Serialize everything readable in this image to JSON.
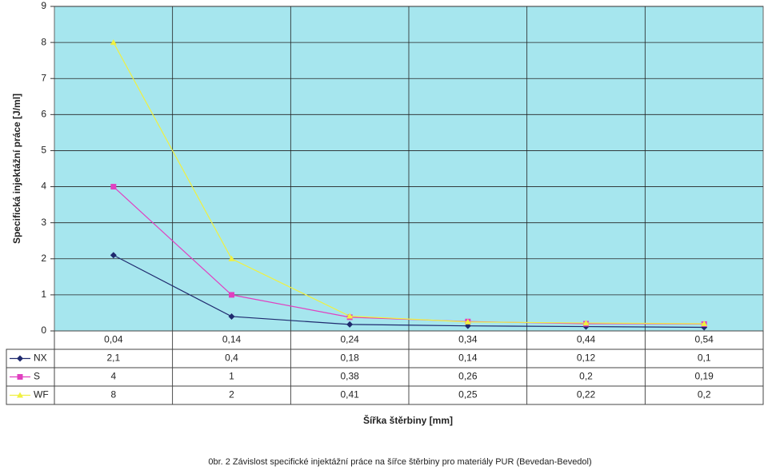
{
  "chart_data": {
    "type": "line",
    "y_label": "Specifická injektážní práce [J/ml]",
    "x_label": "Šířka štěrbiny [mm]",
    "caption": "0br. 2   Závislost specifické injektážní práce na šířce štěrbiny pro materiály PUR (Bevedan-Bevedol)",
    "categories": [
      "0,04",
      "0,14",
      "0,24",
      "0,34",
      "0,44",
      "0,54"
    ],
    "series": [
      {
        "name": "NX",
        "color": "#1f2a6e",
        "marker": "diamond",
        "values": [
          2.1,
          0.4,
          0.18,
          0.14,
          0.12,
          0.1
        ],
        "value_labels": [
          "2,1",
          "0,4",
          "0,18",
          "0,14",
          "0,12",
          "0,1"
        ]
      },
      {
        "name": "S",
        "color": "#e040c0",
        "marker": "square",
        "values": [
          4,
          1,
          0.38,
          0.26,
          0.2,
          0.19
        ],
        "value_labels": [
          "4",
          "1",
          "0,38",
          "0,26",
          "0,2",
          "0,19"
        ]
      },
      {
        "name": "WF",
        "color": "#f0f040",
        "marker": "triangle",
        "values": [
          8,
          2,
          0.41,
          0.25,
          0.22,
          0.2
        ],
        "value_labels": [
          "8",
          "2",
          "0,41",
          "0,25",
          "0,22",
          "0,2"
        ]
      }
    ],
    "ylim": [
      0,
      9
    ],
    "yticks": [
      0,
      1,
      2,
      3,
      4,
      5,
      6,
      7,
      8,
      9
    ],
    "grid": true,
    "plot_background": "#a6e6ee"
  }
}
